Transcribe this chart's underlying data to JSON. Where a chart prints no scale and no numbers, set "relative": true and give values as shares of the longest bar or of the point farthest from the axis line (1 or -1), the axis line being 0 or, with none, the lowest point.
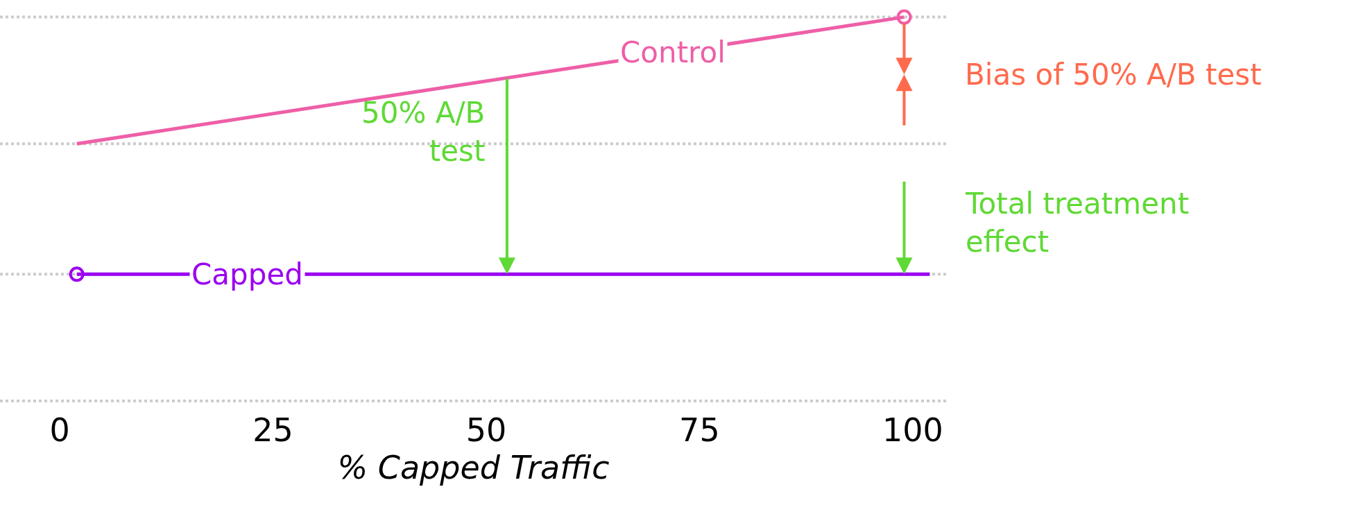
{
  "chart_data": {
    "type": "line",
    "relative": true,
    "xlabel": "% Capped Traffic",
    "xlim": [
      -7,
      104
    ],
    "xticks": [
      0,
      25,
      50,
      75,
      100
    ],
    "legend": false,
    "tick_labels": "x",
    "line_style": "solid",
    "series": [
      {
        "name": "Control",
        "color": "#ee5fa7",
        "x": [
          2,
          99
        ],
        "values": [
          0.67,
          1
        ]
      },
      {
        "name": "Capped",
        "color": "#9b00f0",
        "x": [
          2,
          102
        ],
        "values": [
          0.33,
          0.33
        ]
      },
      {
        "type": "scatter",
        "color": "#ee5fa7",
        "x": [
          99
        ],
        "values": [
          1
        ]
      },
      {
        "type": "scatter",
        "color": "#9b00f0",
        "x": [
          2
        ],
        "values": [
          0.33
        ]
      }
    ],
    "ref_lines": [
      {
        "axis": "y",
        "value": 0,
        "color": "#cccccc",
        "line_style": "dotted"
      },
      {
        "axis": "y",
        "value": 0.33,
        "color": "#cccccc",
        "line_style": "dotted"
      },
      {
        "axis": "y",
        "value": 0.67,
        "color": "#cccccc",
        "line_style": "dotted"
      },
      {
        "axis": "y",
        "value": 1,
        "color": "#cccccc",
        "line_style": "dotted"
      }
    ],
    "annotations": [
      "50% A/B\ntest",
      "Bias of 50% A/B test",
      "Total treatment\neffect"
    ]
  }
}
